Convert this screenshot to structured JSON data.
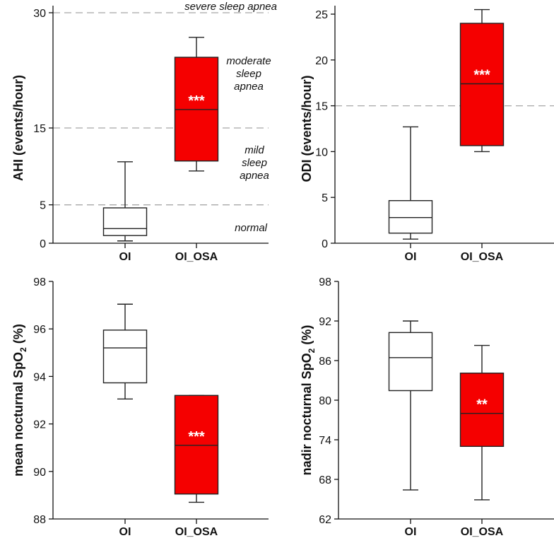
{
  "chart_data": [
    {
      "type": "box",
      "ylabel": "AHI (events/hour)",
      "ylim": [
        0,
        30
      ],
      "yticks": [
        0,
        5,
        15,
        30
      ],
      "reference_lines": [
        5,
        15,
        30
      ],
      "categories": [
        "OI",
        "OI_OSA"
      ],
      "boxes": [
        {
          "name": "OI",
          "min": 0.3,
          "q1": 1.0,
          "median": 1.9,
          "q3": 4.6,
          "max": 10.6,
          "fill": "#ffffff",
          "significance": ""
        },
        {
          "name": "OI_OSA",
          "min": 9.4,
          "q1": 10.7,
          "median": 17.4,
          "q3": 24.2,
          "max": 26.8,
          "fill": "#f50000",
          "significance": "***"
        }
      ],
      "annotations": {
        "severe": "severe sleep apnea",
        "moderate": [
          "moderate",
          "sleep",
          "apnea"
        ],
        "mild": [
          "mild",
          "sleep",
          "apnea"
        ],
        "normal": "normal"
      }
    },
    {
      "type": "box",
      "ylabel": "ODI (events/hour)",
      "ylim": [
        0,
        25
      ],
      "yticks": [
        0,
        5,
        10,
        15,
        20,
        25
      ],
      "reference_lines": [
        15
      ],
      "categories": [
        "OI",
        "OI_OSA"
      ],
      "boxes": [
        {
          "name": "OI",
          "min": 0.45,
          "q1": 1.1,
          "median": 2.8,
          "q3": 4.65,
          "max": 12.7,
          "fill": "#ffffff",
          "significance": ""
        },
        {
          "name": "OI_OSA",
          "min": 10.0,
          "q1": 10.65,
          "median": 17.4,
          "q3": 24.0,
          "max": 25.5,
          "fill": "#f50000",
          "significance": "***"
        }
      ]
    },
    {
      "type": "box",
      "ylabel_main": "mean nocturnal SpO",
      "ylabel_sub": "2",
      "ylabel_tail": " (%)",
      "ylim": [
        88,
        98
      ],
      "yticks": [
        88,
        90,
        92,
        94,
        96,
        98
      ],
      "reference_lines": [],
      "categories": [
        "OI",
        "OI_OSA"
      ],
      "boxes": [
        {
          "name": "OI",
          "min": 93.05,
          "q1": 93.73,
          "median": 95.2,
          "q3": 95.95,
          "max": 97.04,
          "fill": "#ffffff",
          "significance": ""
        },
        {
          "name": "OI_OSA",
          "min": 88.7,
          "q1": 89.05,
          "median": 91.1,
          "q3": 93.2,
          "max": 93.2,
          "fill": "#f50000",
          "significance": "***"
        }
      ]
    },
    {
      "type": "box",
      "ylabel_main": "nadir nocturnal SpO",
      "ylabel_sub": "2",
      "ylabel_tail": " (%)",
      "ylim": [
        62,
        98
      ],
      "yticks": [
        62,
        68,
        74,
        80,
        86,
        92,
        98
      ],
      "reference_lines": [],
      "categories": [
        "OI",
        "OI_OSA"
      ],
      "boxes": [
        {
          "name": "OI",
          "min": 66.4,
          "q1": 81.45,
          "median": 86.45,
          "q3": 90.25,
          "max": 92.0,
          "fill": "#ffffff",
          "significance": ""
        },
        {
          "name": "OI_OSA",
          "min": 64.9,
          "q1": 73.0,
          "median": 78.0,
          "q3": 84.1,
          "max": 88.3,
          "fill": "#f50000",
          "significance": "**"
        }
      ]
    }
  ]
}
